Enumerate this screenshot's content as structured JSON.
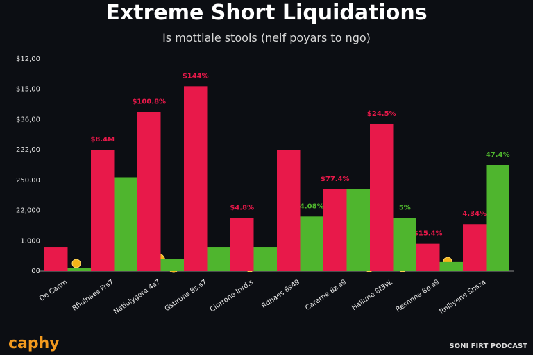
{
  "chart_data": {
    "type": "bar",
    "title": "Extreme Short Liquidations",
    "subtitle": "Is mottiale stools (neif poyars to ngo)",
    "brand": "caphy",
    "footer": "SONI FIRT PODCAST",
    "categories": [
      "De Canm",
      "Rfiulnaes Frs7",
      "Natlulygera 4s7",
      "Gstiruns 8s.s7",
      "Clorrone Inrd.s",
      "Rdhaes 8s49",
      "Cararne 8z.s9",
      "Hallune 8f3W.",
      "Resnnne 8e.s9",
      "Rnlliyene Snsza"
    ],
    "series": [
      {
        "color": "#e8194a",
        "values": [
          0.8,
          4.0,
          5.25,
          6.1,
          1.75,
          4.0,
          2.7,
          4.85,
          0.9,
          1.55
        ],
        "value_labels": [
          null,
          "$8.4M",
          "$100.8%",
          "$144%",
          "$4.8%",
          null,
          "$77.4%",
          "$24.5%",
          "$15.4%",
          "4.34%"
        ]
      },
      {
        "color": "#4fb52e",
        "values": [
          0.1,
          3.1,
          0.4,
          0.8,
          0.8,
          1.8,
          2.7,
          1.75,
          0.3,
          3.5
        ],
        "value_labels": [
          null,
          null,
          null,
          null,
          null,
          "4.08%",
          null,
          "5%",
          null,
          "47.4%"
        ]
      }
    ],
    "ylim": [
      0,
      7
    ],
    "yticks": [
      {
        "value": 0,
        "label": "00"
      },
      {
        "value": 1,
        "label": "1.000"
      },
      {
        "value": 2,
        "label": "22,000"
      },
      {
        "value": 3,
        "label": "250.00"
      },
      {
        "value": 4,
        "label": "222,00"
      },
      {
        "value": 5,
        "label": "$36,00"
      },
      {
        "value": 6,
        "label": "$15,00"
      },
      {
        "value": 7,
        "label": "$12,00"
      }
    ],
    "grid": false
  }
}
